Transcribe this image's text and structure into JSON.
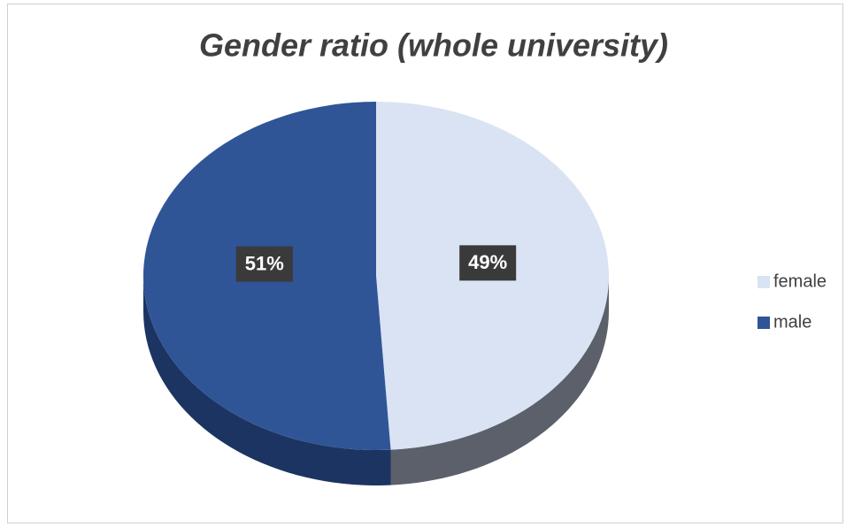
{
  "chart_data": {
    "type": "pie",
    "title": "Gender ratio (whole university)",
    "categories": [
      "female",
      "male"
    ],
    "values": [
      49,
      51
    ],
    "value_labels": [
      "49%",
      "51%"
    ],
    "colors": [
      "#dae3f3",
      "#2f5597"
    ],
    "side_colors": [
      "#5b606b",
      "#1c3461"
    ]
  }
}
